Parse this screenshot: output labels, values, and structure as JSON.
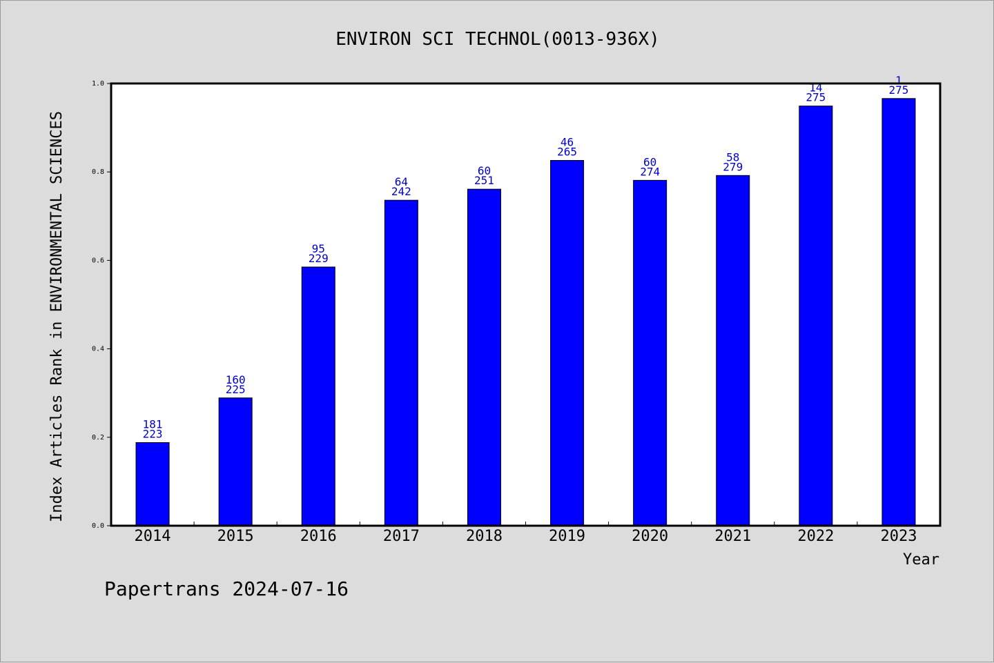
{
  "chart_data": {
    "type": "bar",
    "title": "ENVIRON SCI TECHNOL(0013-936X)",
    "ylabel": "Index Articles Rank in ENVIRONMENTAL SCIENCES",
    "xlabel": "Year",
    "ylim": [
      0,
      1.0
    ],
    "yticks": [
      "0.0",
      "0.2",
      "0.4",
      "0.6",
      "0.8",
      "1.0"
    ],
    "grid": false,
    "categories": [
      "2014",
      "2015",
      "2016",
      "2017",
      "2018",
      "2019",
      "2020",
      "2021",
      "2022",
      "2023"
    ],
    "values": [
      0.188,
      0.289,
      0.585,
      0.736,
      0.761,
      0.826,
      0.781,
      0.792,
      0.949,
      0.966
    ],
    "labels_top": [
      "181",
      "160",
      "95",
      "64",
      "60",
      "46",
      "60",
      "58",
      "14",
      "1"
    ],
    "labels_bottom": [
      "223",
      "225",
      "229",
      "242",
      "251",
      "265",
      "274",
      "279",
      "275",
      "275"
    ],
    "bar_color": "#0000ff",
    "label_color": "#0000cc"
  },
  "footer": "Papertrans 2024-07-16"
}
